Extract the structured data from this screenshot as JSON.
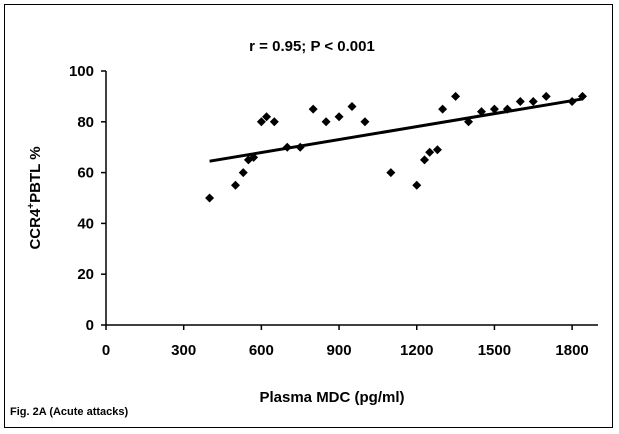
{
  "chart_data": {
    "type": "scatter",
    "title": "r = 0.95; P < 0.001",
    "xlabel": "Plasma MDC (pg/ml)",
    "ylabel_main": "CCR4",
    "ylabel_sup": "+",
    "ylabel_tail": "PBTL %",
    "caption": "Fig. 2A (Acute attacks)",
    "xlim": [
      0,
      1900
    ],
    "ylim": [
      0,
      100
    ],
    "x_ticks": [
      0,
      300,
      600,
      900,
      1200,
      1500,
      1800
    ],
    "y_ticks": [
      0,
      20,
      40,
      60,
      80,
      100
    ],
    "grid": false,
    "series": [
      {
        "points": [
          [
            400,
            50
          ],
          [
            500,
            55
          ],
          [
            530,
            60
          ],
          [
            550,
            65
          ],
          [
            570,
            66
          ],
          [
            600,
            80
          ],
          [
            620,
            82
          ],
          [
            650,
            80
          ],
          [
            700,
            70
          ],
          [
            750,
            70
          ],
          [
            800,
            85
          ],
          [
            850,
            80
          ],
          [
            900,
            82
          ],
          [
            950,
            86
          ],
          [
            1000,
            80
          ],
          [
            1100,
            60
          ],
          [
            1200,
            55
          ],
          [
            1230,
            65
          ],
          [
            1250,
            68
          ],
          [
            1280,
            69
          ],
          [
            1300,
            85
          ],
          [
            1350,
            90
          ],
          [
            1400,
            80
          ],
          [
            1450,
            84
          ],
          [
            1500,
            85
          ],
          [
            1550,
            85
          ],
          [
            1600,
            88
          ],
          [
            1650,
            88
          ],
          [
            1700,
            90
          ],
          [
            1800,
            88
          ],
          [
            1840,
            90
          ]
        ]
      }
    ],
    "trendline": {
      "x": [
        400,
        1840
      ],
      "y": [
        64.5,
        89
      ]
    },
    "marker": "diamond",
    "color": "#000000"
  }
}
